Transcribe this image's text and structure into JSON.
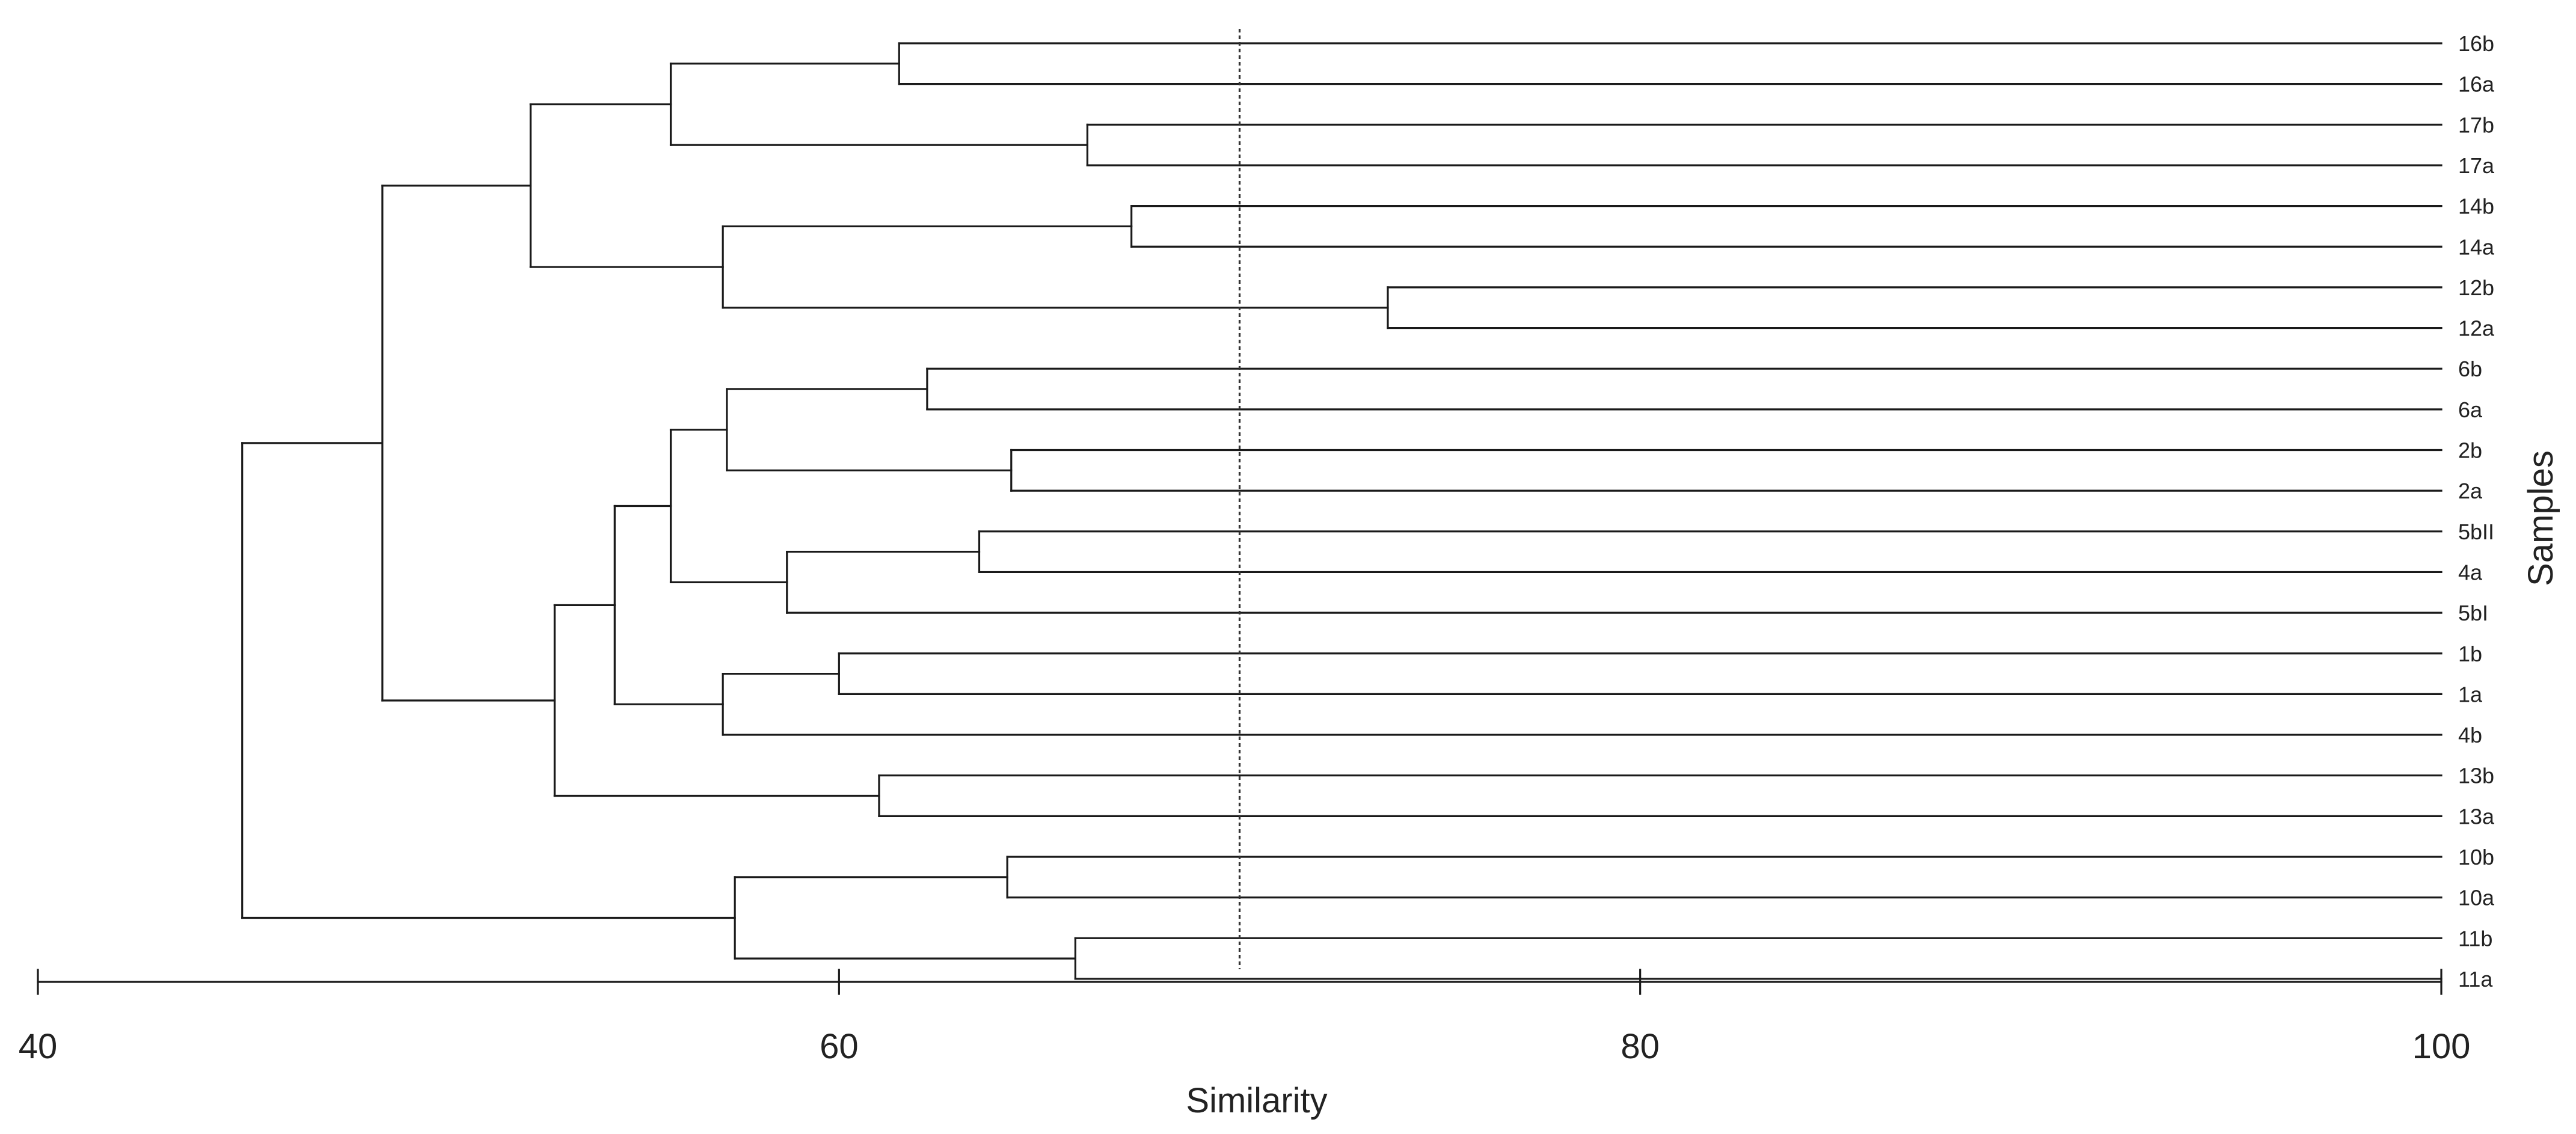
{
  "chart_data": {
    "type": "dendrogram",
    "orientation": "horizontal",
    "xlabel": "Similarity",
    "ylabel": "Samples",
    "xlim": [
      40,
      100
    ],
    "xticks": [
      40,
      60,
      80,
      100
    ],
    "xtick_labels": [
      "40",
      "60",
      "80",
      "100"
    ],
    "threshold_line": 70,
    "leaves": [
      "16b",
      "16a",
      "17b",
      "17a",
      "14b",
      "14a",
      "12b",
      "12a",
      "6b",
      "6a",
      "2b",
      "2a",
      "5bII",
      "4a",
      "5bI",
      "1b",
      "1a",
      "4b",
      "13b",
      "13a",
      "10b",
      "10a",
      "11b",
      "11a"
    ],
    "merges": [
      {
        "id": "m1",
        "children": [
          "16b",
          "16a"
        ],
        "similarity": 61.5
      },
      {
        "id": "m2",
        "children": [
          "17b",
          "17a"
        ],
        "similarity": 66.2
      },
      {
        "id": "m3",
        "children": [
          "14b",
          "14a"
        ],
        "similarity": 67.3
      },
      {
        "id": "m4",
        "children": [
          "12b",
          "12a"
        ],
        "similarity": 73.7
      },
      {
        "id": "m5",
        "children": [
          "6b",
          "6a"
        ],
        "similarity": 62.2
      },
      {
        "id": "m6",
        "children": [
          "2b",
          "2a"
        ],
        "similarity": 64.3
      },
      {
        "id": "m7",
        "children": [
          "5bII",
          "4a"
        ],
        "similarity": 63.5
      },
      {
        "id": "m8",
        "children": [
          "1b",
          "1a"
        ],
        "similarity": 60.0
      },
      {
        "id": "m9",
        "children": [
          "13b",
          "13a"
        ],
        "similarity": 61.0
      },
      {
        "id": "m10",
        "children": [
          "10b",
          "10a"
        ],
        "similarity": 64.2
      },
      {
        "id": "m11",
        "children": [
          "11b",
          "11a"
        ],
        "similarity": 65.9
      },
      {
        "id": "m12",
        "children": [
          "m1",
          "m2"
        ],
        "similarity": 55.8
      },
      {
        "id": "m13",
        "children": [
          "m3",
          "m4"
        ],
        "similarity": 57.1
      },
      {
        "id": "m14",
        "children": [
          "m12",
          "m13"
        ],
        "similarity": 52.3
      },
      {
        "id": "m15",
        "children": [
          "m5",
          "m6"
        ],
        "similarity": 57.2
      },
      {
        "id": "m16",
        "children": [
          "m7",
          "5bI"
        ],
        "similarity": 58.7
      },
      {
        "id": "m17",
        "children": [
          "m15",
          "m16"
        ],
        "similarity": 55.8
      },
      {
        "id": "m18",
        "children": [
          "m8",
          "4b"
        ],
        "similarity": 57.1
      },
      {
        "id": "m19",
        "children": [
          "m17",
          "m18"
        ],
        "similarity": 54.4
      },
      {
        "id": "m20",
        "children": [
          "m19",
          "m9"
        ],
        "similarity": 52.9
      },
      {
        "id": "m21",
        "children": [
          "m14",
          "m20"
        ],
        "similarity": 48.6
      },
      {
        "id": "m22",
        "children": [
          "m10",
          "m11"
        ],
        "similarity": 57.4
      },
      {
        "id": "m23",
        "children": [
          "m21",
          "m22"
        ],
        "similarity": 45.1
      }
    ]
  }
}
